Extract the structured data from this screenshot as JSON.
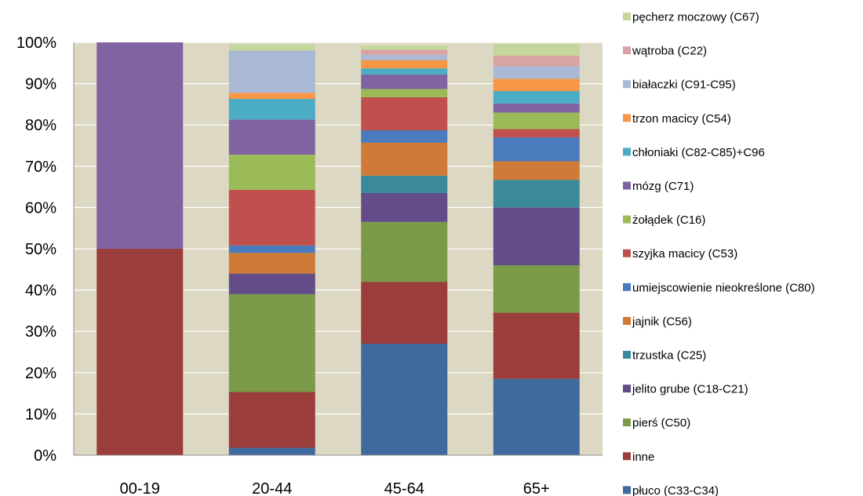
{
  "chart_data": {
    "type": "bar",
    "stacked": true,
    "normalized": true,
    "categories": [
      "00-19",
      "20-44",
      "45-64",
      "65+"
    ],
    "ylim": [
      0,
      100
    ],
    "y_ticks": [
      "0%",
      "10%",
      "20%",
      "30%",
      "40%",
      "50%",
      "60%",
      "70%",
      "80%",
      "90%",
      "100%"
    ],
    "plot_background": "#ddd8c4",
    "gridlines": "horizontal, white",
    "legend_position": "right",
    "series": [
      {
        "name": "płuco (C33-C34)",
        "color": "#3f6a9e",
        "values": [
          0,
          1.8,
          27,
          18.5
        ]
      },
      {
        "name": "inne",
        "color": "#9b3d3b",
        "values": [
          50,
          13.5,
          15,
          16
        ]
      },
      {
        "name": "pierś (C50)",
        "color": "#7b9a48",
        "values": [
          0,
          23.7,
          14.5,
          11.5
        ]
      },
      {
        "name": "jelito grube (C18-C21)",
        "color": "#634c87",
        "values": [
          0,
          5,
          7,
          14
        ]
      },
      {
        "name": "trzustka (C25)",
        "color": "#3a8a9b",
        "values": [
          0,
          0,
          4.2,
          6.7
        ]
      },
      {
        "name": "jajnik (C56)",
        "color": "#cf7a36",
        "values": [
          0,
          5,
          8,
          4.5
        ]
      },
      {
        "name": "umiejscowienie nieokreślone (C80)",
        "color": "#4a7bbd",
        "values": [
          0,
          1.8,
          3,
          5.8
        ]
      },
      {
        "name": "szyjka macicy (C53)",
        "color": "#c0504d",
        "values": [
          0,
          13.5,
          8,
          2
        ]
      },
      {
        "name": "żołądek (C16)",
        "color": "#9bbb59",
        "values": [
          0,
          8.5,
          2,
          4
        ]
      },
      {
        "name": "mózg (C71)",
        "color": "#8064a2",
        "values": [
          50,
          8.5,
          3.5,
          2.2
        ]
      },
      {
        "name": "chłoniaki (C82-C85)+C96",
        "color": "#4bacc6",
        "values": [
          0,
          5,
          1.5,
          3
        ]
      },
      {
        "name": "trzon macicy (C54)",
        "color": "#f79646",
        "values": [
          0,
          1.5,
          2,
          3
        ]
      },
      {
        "name": "białaczki (C91-C95)",
        "color": "#aab9d6",
        "values": [
          0,
          10.2,
          1.3,
          3
        ]
      },
      {
        "name": "wątroba (C22)",
        "color": "#d9a3a3",
        "values": [
          0,
          0,
          1.2,
          2.6
        ]
      },
      {
        "name": "pęcherz moczowy (C67)",
        "color": "#c3d69b",
        "values": [
          0,
          1.5,
          1,
          2.8
        ]
      }
    ]
  }
}
